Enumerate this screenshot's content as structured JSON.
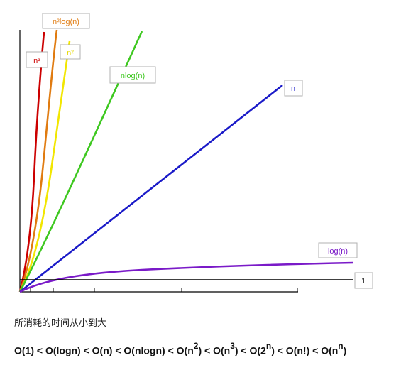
{
  "chart_data": {
    "type": "line",
    "title": "",
    "xlabel": "",
    "ylabel": "",
    "grid": false,
    "series": [
      {
        "name": "n³",
        "fn": "n^3",
        "color": "#cc0000"
      },
      {
        "name": "n²log(n)",
        "fn": "n^2*log(n)",
        "color": "#e07b10"
      },
      {
        "name": "n²",
        "fn": "n^2",
        "color": "#f2e600"
      },
      {
        "name": "nlog(n)",
        "fn": "n*log(n)",
        "color": "#3ec820"
      },
      {
        "name": "n",
        "fn": "n",
        "color": "#1a1ac8"
      },
      {
        "name": "log(n)",
        "fn": "log(n)",
        "color": "#7a1ac8"
      },
      {
        "name": "1",
        "fn": "1",
        "color": "#000000"
      }
    ]
  },
  "caption": "所消耗的时间从小到大",
  "order": [
    {
      "text": "O(1) < O(logn) < O(n) < O(nlogn) < O(n"
    },
    {
      "sup": "2"
    },
    {
      "text": ") < O(n"
    },
    {
      "sup": "3"
    },
    {
      "text": ") < O(2"
    },
    {
      "sup": "n"
    },
    {
      "text": ") < O(n!) < O(n"
    },
    {
      "sup": "n"
    },
    {
      "text": ")"
    }
  ]
}
